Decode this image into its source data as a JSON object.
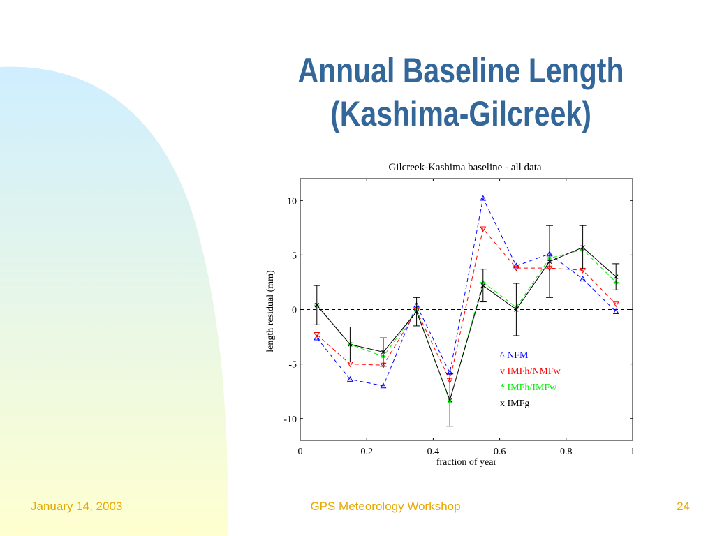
{
  "slide": {
    "title_line1": "Annual Baseline Length",
    "title_line2": "(Kashima-Gilcreek)",
    "colors": {
      "title": "#336699",
      "footer": "#e6a800",
      "bg_top": "#cfeeff",
      "bg_bottom": "#ffffd0"
    }
  },
  "footer": {
    "date": "January 14, 2003",
    "center": "GPS Meteorology Workshop",
    "page_number": "24"
  },
  "chart_data": {
    "type": "line",
    "title": "Gilcreek-Kashima baseline - all data",
    "xlabel": "fraction of year",
    "ylabel": "length residual (mm)",
    "xlim": [
      0,
      1
    ],
    "ylim": [
      -12,
      12
    ],
    "xticks": [
      0,
      0.2,
      0.4,
      0.6,
      0.8,
      1
    ],
    "xtick_labels": [
      "0",
      "0.2",
      "0.4",
      "0.6",
      "0.8",
      "1"
    ],
    "yticks": [
      10,
      5,
      0,
      -5,
      -10
    ],
    "ytick_labels": [
      "10",
      "5",
      "0",
      "-5",
      "-10"
    ],
    "grid": false,
    "legend_position": "bottom-right",
    "x": [
      0.05,
      0.15,
      0.25,
      0.35,
      0.45,
      0.55,
      0.65,
      0.75,
      0.85,
      0.95
    ],
    "series": [
      {
        "name": "NFM",
        "legend": "^ NFM",
        "marker": "triangle-up",
        "linestyle": "dashed",
        "color": "#0000ff",
        "values": [
          -2.6,
          -6.4,
          -7.0,
          0.4,
          -5.8,
          10.2,
          4.0,
          5.1,
          2.8,
          -0.2
        ]
      },
      {
        "name": "IMFh/NMFw",
        "legend": "v IMFh/NMFw",
        "marker": "triangle-down",
        "linestyle": "dashed",
        "color": "#ff0000",
        "values": [
          -2.3,
          -5.0,
          -5.1,
          -0.1,
          -6.5,
          7.4,
          3.8,
          3.8,
          3.6,
          0.5
        ]
      },
      {
        "name": "IMFh/IMFw",
        "legend": "* IMFh/IMFw",
        "marker": "star",
        "linestyle": "dashed",
        "color": "#00ee00",
        "values": [
          0.4,
          -3.2,
          -4.3,
          -0.1,
          -8.4,
          2.5,
          0.2,
          4.7,
          5.5,
          2.5
        ]
      },
      {
        "name": "IMFg",
        "legend": "x IMFg",
        "marker": "x",
        "linestyle": "solid",
        "color": "#000000",
        "values": [
          0.4,
          -3.2,
          -3.9,
          -0.2,
          -8.3,
          2.2,
          0.0,
          4.4,
          5.7,
          3.0
        ],
        "errors": [
          1.8,
          1.6,
          1.3,
          1.3,
          2.4,
          1.5,
          2.4,
          3.3,
          2.0,
          1.2
        ]
      }
    ],
    "reference_line": {
      "y": 0,
      "linestyle": "dashed",
      "color": "#000000"
    }
  }
}
